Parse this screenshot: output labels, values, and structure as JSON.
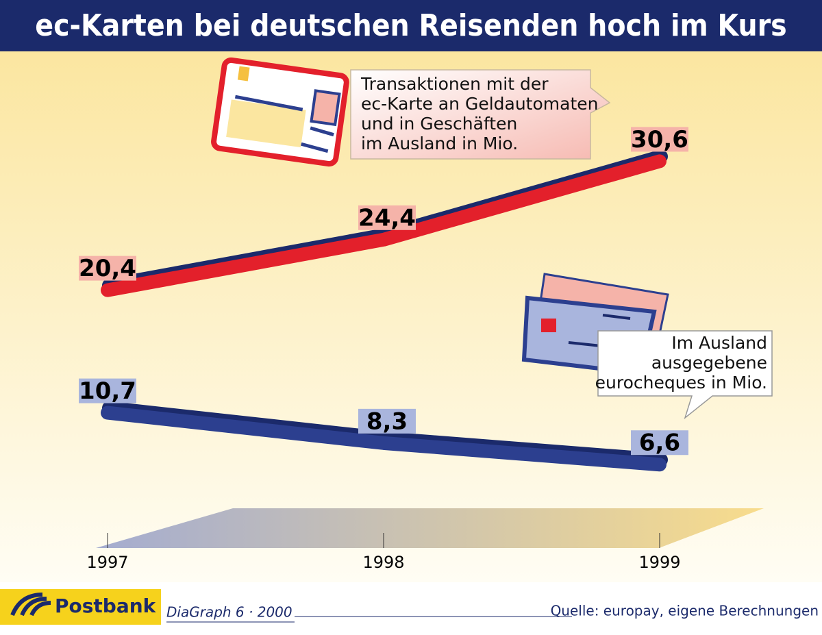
{
  "chart_data": {
    "type": "line",
    "title": "ec-Karten bei deutschen Reisenden hoch im Kurs",
    "categories": [
      "1997",
      "1998",
      "1999"
    ],
    "series": [
      {
        "name": [
          "Transaktionen mit der",
          "ec-Karte an Geldautomaten",
          "und in Geschäften",
          "im Ausland in Mio."
        ],
        "color": "#e3202b",
        "label_bg": "#f5b3a9",
        "values": [
          20.4,
          24.4,
          30.6
        ],
        "value_labels": [
          "20,4",
          "24,4",
          "30,6"
        ]
      },
      {
        "name": [
          "Im Ausland",
          "ausgegebene",
          "eurocheques in Mio."
        ],
        "color": "#2c3f8f",
        "label_bg": "#a9b5dd",
        "values": [
          10.7,
          8.3,
          6.6
        ],
        "value_labels": [
          "10,7",
          "8,3",
          "6,6"
        ]
      }
    ],
    "ylim": [
      0,
      40
    ],
    "brand": "Postbank",
    "credit": "DiaGraph 6 · 2000",
    "source": "Quelle: europay, eigene Berechnungen"
  }
}
